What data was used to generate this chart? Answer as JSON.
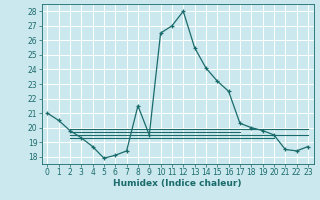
{
  "xlabel": "Humidex (Indice chaleur)",
  "bg_color": "#cbe8ee",
  "grid_color": "#ffffff",
  "line_color": "#1a6b6b",
  "xlim": [
    -0.5,
    23.5
  ],
  "ylim": [
    17.5,
    28.5
  ],
  "xticks": [
    0,
    1,
    2,
    3,
    4,
    5,
    6,
    7,
    8,
    9,
    10,
    11,
    12,
    13,
    14,
    15,
    16,
    17,
    18,
    19,
    20,
    21,
    22,
    23
  ],
  "yticks": [
    18,
    19,
    20,
    21,
    22,
    23,
    24,
    25,
    26,
    27,
    28
  ],
  "main_series": {
    "x": [
      0,
      1,
      2,
      3,
      4,
      5,
      6,
      7,
      8,
      9,
      10,
      11,
      12,
      13,
      14,
      15,
      16,
      17,
      18,
      19,
      20,
      21,
      22,
      23
    ],
    "y": [
      21.0,
      20.5,
      19.8,
      19.3,
      18.7,
      17.9,
      18.1,
      18.4,
      21.5,
      19.5,
      26.5,
      27.0,
      28.0,
      25.5,
      24.1,
      23.2,
      22.5,
      20.3,
      20.0,
      19.8,
      19.5,
      18.5,
      18.4,
      18.7
    ]
  },
  "flat_lines": [
    {
      "x": [
        2,
        23
      ],
      "y": [
        19.9,
        19.9
      ]
    },
    {
      "x": [
        2,
        23
      ],
      "y": [
        19.5,
        19.5
      ]
    },
    {
      "x": [
        2,
        17
      ],
      "y": [
        19.7,
        19.7
      ]
    },
    {
      "x": [
        2,
        20
      ],
      "y": [
        19.3,
        19.3
      ]
    }
  ]
}
